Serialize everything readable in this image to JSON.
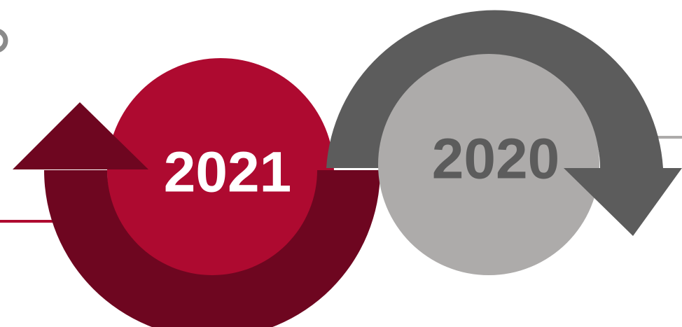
{
  "years": [
    {
      "label": "2021",
      "circle_color": "#ae0a30",
      "arrow_color": "#6e0620",
      "text_color": "#ffffff",
      "line_color": "#ae0a30",
      "arrow_direction": "up"
    },
    {
      "label": "2020",
      "circle_color": "#adabaa",
      "arrow_color": "#5c5c5c",
      "text_color": "#5c5c5c",
      "line_color": "#adabaa",
      "arrow_direction": "down"
    }
  ],
  "accent_colors": {
    "edge_mark": "#8a8a8a"
  }
}
